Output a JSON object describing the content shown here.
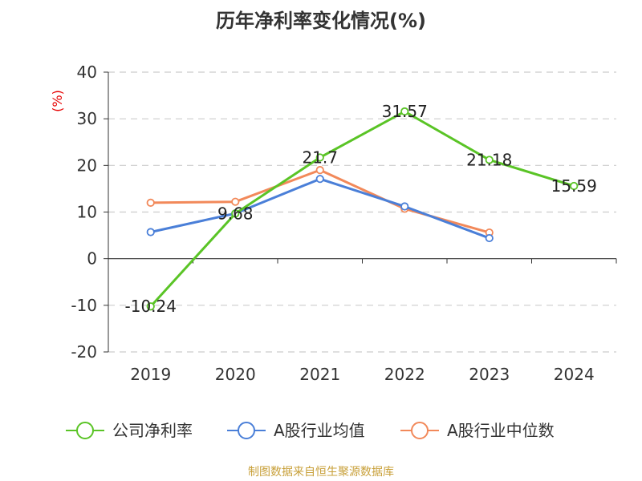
{
  "page": {
    "title": "历年净利率变化情况(%)",
    "footer": "制图数据来自恒生聚源数据库",
    "unit": "(%)"
  },
  "chart_data": {
    "type": "line",
    "title": "历年净利率变化情况(%)",
    "ylabel": "(%)",
    "categories": [
      "2019",
      "2020",
      "2021",
      "2022",
      "2023",
      "2024"
    ],
    "ylim": [
      -20,
      40
    ],
    "yticks": [
      40,
      30,
      20,
      10,
      0,
      -10,
      -20
    ],
    "grid": true,
    "legend_position": "bottom",
    "series": [
      {
        "name": "公司净利率",
        "color": "#5ac426",
        "values": [
          -10.24,
          9.68,
          21.7,
          31.57,
          21.18,
          15.59
        ],
        "labels": [
          "-10.24",
          "9.68",
          "21.7",
          "31.57",
          "21.18",
          "15.59"
        ]
      },
      {
        "name": "A股行业均值",
        "color": "#4a7fd8",
        "values": [
          5.7,
          9.7,
          17.1,
          11.2,
          4.4,
          null
        ]
      },
      {
        "name": "A股行业中位数",
        "color": "#f2895a",
        "values": [
          12.0,
          12.2,
          19.0,
          10.7,
          5.6,
          null
        ]
      }
    ]
  }
}
